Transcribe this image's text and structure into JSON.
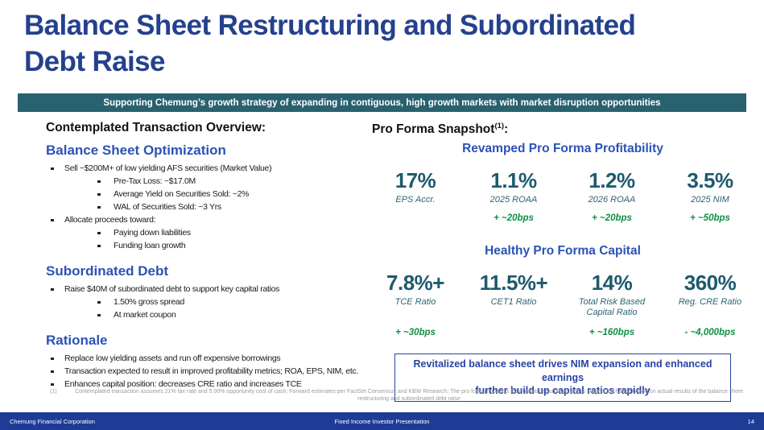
{
  "slide": {
    "title_lines": [
      "Balance Sheet Restructuring and Subordinated",
      "Debt Raise"
    ],
    "banner": "Supporting Chemung’s growth strategy of expanding in contiguous, high growth markets with market disruption opportunities"
  },
  "left": {
    "heading": "Contemplated Transaction Overview:",
    "sections": [
      {
        "title": "Balance Sheet Optimization",
        "bullets": [
          {
            "level": 1,
            "text": "Sell ~$200M+ of low yielding AFS securities (Market Value)"
          },
          {
            "level": 2,
            "text": "Pre-Tax Loss: ~$17.0M"
          },
          {
            "level": 2,
            "text": "Average Yield on Securities Sold: ~2%"
          },
          {
            "level": 2,
            "text": "WAL of Securities Sold: ~3 Yrs"
          },
          {
            "level": 1,
            "text": "Allocate proceeds toward:"
          },
          {
            "level": 2,
            "text": "Paying down liabilities"
          },
          {
            "level": 2,
            "text": "Funding loan growth"
          }
        ]
      },
      {
        "title": "Subordinated Debt",
        "bullets": [
          {
            "level": 1,
            "text": "Raise $40M of subordinated debt to support key capital ratios"
          },
          {
            "level": 2,
            "text": "1.50% gross spread"
          },
          {
            "level": 2,
            "text": "At market coupon"
          }
        ]
      },
      {
        "title": "Rationale",
        "bullets": [
          {
            "level": 1,
            "text": "Replace low yielding assets and run off expensive borrowings"
          },
          {
            "level": 1,
            "text": "Transaction expected to result in improved profitability metrics; ROA, EPS, NIM, etc."
          },
          {
            "level": 1,
            "text": "Enhances capital position: decreases CRE ratio and increases TCE"
          }
        ]
      }
    ]
  },
  "right": {
    "heading": "Pro Forma Snapshot",
    "heading_sup": "(1)",
    "heading_colon": ":",
    "profitability": {
      "title": "Revamped Pro Forma Profitability",
      "stats": [
        {
          "value": "17%",
          "label": "EPS Accr.",
          "delta": ""
        },
        {
          "value": "1.1%",
          "label": "2025 ROAA",
          "delta": "+ ~20bps"
        },
        {
          "value": "1.2%",
          "label": "2026 ROAA",
          "delta": "+ ~20bps"
        },
        {
          "value": "3.5%",
          "label": "2025 NIM",
          "delta": "+ ~50bps"
        }
      ]
    },
    "capital": {
      "title": "Healthy Pro Forma Capital",
      "stats": [
        {
          "value": "7.8%+",
          "label": "TCE Ratio",
          "delta": "+ ~30bps"
        },
        {
          "value": "11.5%+",
          "label": "CET1 Ratio",
          "delta": ""
        },
        {
          "value": "14%",
          "label": "Total Risk Based Capital Ratio",
          "delta": "+ ~160bps"
        },
        {
          "value": "360%",
          "label": "Reg. CRE Ratio",
          "delta": "- ~4,000bps"
        }
      ]
    },
    "callout_lines": [
      "Revitalized balance sheet drives NIM expansion and enhanced earnings",
      "further build up capital ratios rapidly"
    ]
  },
  "footnote": {
    "marker": "(1)",
    "text": "Contemplated transaction assumes 21% tax rate and 5.00% opportunity cost of cash; Forward estimates per FactSet Consensus and KBW Research; The pro forma impact is for illustrative purposes and is subject to change based on actual results of the balance sheet restructuring and subordinated debt raise"
  },
  "footer": {
    "left": "Chemung Financial Corporation",
    "center": "Fixed Income Investor Presentation",
    "page": "14"
  },
  "colors": {
    "title_navy": "#24418E",
    "heading_blue": "#2B52B5",
    "banner_teal": "#29616E",
    "stat_teal": "#1C5A6E",
    "delta_green": "#0E8F47",
    "callout_blue": "#2743A5",
    "footer_blue": "#1E3C96"
  }
}
